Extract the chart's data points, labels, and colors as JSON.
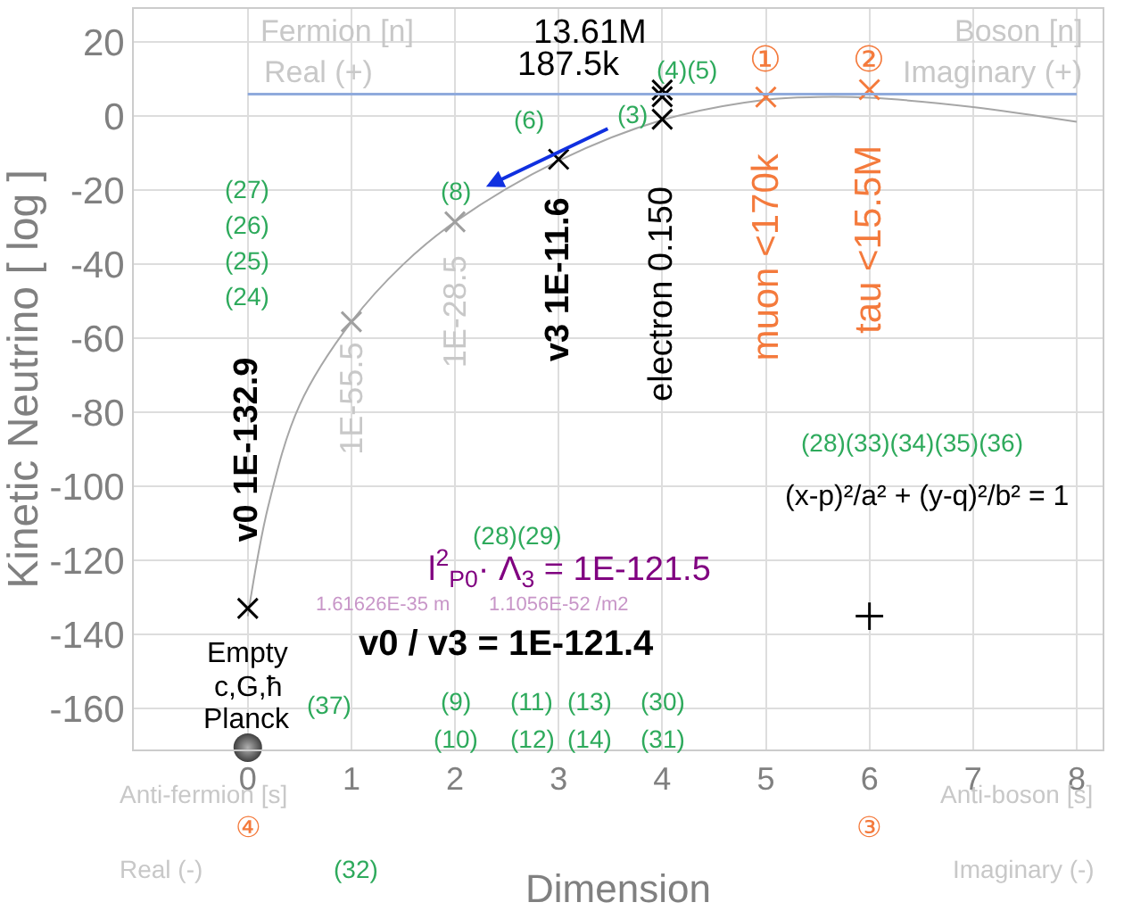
{
  "chart_data": {
    "type": "line",
    "xlabel": "Dimension",
    "ylabel": "Kinetic Neutrino [ log ]",
    "xlim": [
      -1.1,
      8.25
    ],
    "ylim": [
      -171,
      29
    ],
    "xticks": [
      0,
      1,
      2,
      3,
      4,
      5,
      6,
      7,
      8
    ],
    "yticks": [
      -160,
      -140,
      -120,
      -100,
      -80,
      -60,
      -40,
      -20,
      0,
      20
    ],
    "grid": true,
    "legend": false,
    "ref_lines": [
      {
        "axis": "y",
        "value": 6,
        "color": "#8faadc"
      }
    ],
    "series": [
      {
        "color": "#a6a6a6",
        "marker": "none",
        "x": [
          0,
          0.2,
          0.5,
          1,
          1.5,
          2,
          3,
          4,
          5,
          5.5,
          6,
          7,
          8
        ],
        "values": [
          -135,
          -105,
          -78,
          -55.5,
          -40,
          -28.5,
          -12,
          -1,
          4.5,
          5.2,
          5,
          2.5,
          -1.5
        ]
      },
      {
        "type": "scatter",
        "marker": "cross",
        "color": "#000000",
        "colors": [
          "#000000",
          "#a0a0a0",
          "#a0a0a0",
          "#000000",
          "#000000",
          "#000000",
          "#000000"
        ],
        "x": [
          0,
          1,
          2,
          3,
          4,
          4,
          4
        ],
        "values": [
          -132.9,
          -55.5,
          -28.5,
          -11.6,
          -0.8,
          5.3,
          7.1
        ]
      },
      {
        "type": "scatter",
        "marker": "cross",
        "color": "#f47a3c",
        "x": [
          5,
          6
        ],
        "values": [
          5.2,
          7.2
        ]
      },
      {
        "type": "scatter",
        "marker": "plus",
        "color": "#000000",
        "x": [
          6
        ],
        "values": [
          -135
        ]
      },
      {
        "type": "scatter",
        "marker": "circle",
        "color": "#404040",
        "x": [
          0
        ],
        "values": [
          -170.5
        ]
      }
    ],
    "annotations": [
      "Fermion [n]",
      "Real (+)",
      "Boson [n]",
      "Imaginary (+)",
      "13.61M",
      "187.5k",
      "(4)(5)",
      "(3)",
      "(6)",
      "(8)",
      "①",
      "②",
      "muon <170k",
      "tau <15.5M",
      "electron 0.150",
      "v3 1E-11.6",
      "1E-28.5",
      "1E-55.5",
      "v0 1E-132.9",
      "(27)",
      "(26)",
      "(25)",
      "(24)",
      "(28)(29)",
      "l$^{2}$$_{P0}$· Λ$_{3}$ = 1E-121.5",
      "1.61626E-35 m",
      "1.1056E-52 /m2",
      "v0 / v3 = 1E-121.4",
      "Empty",
      "c,G,ħ",
      "Planck",
      "(37)",
      "(9)",
      "(10)",
      "(11)",
      "(12)",
      "(13)",
      "(14)",
      "(30)",
      "(31)",
      "(28)(33)(34)(35)(36)",
      "(x-p)²/a² + (y-q)²/b² = 1",
      "④",
      "③",
      "(32)",
      "Anti-fermion [s]",
      "Real (-)",
      "Anti-boson [s]",
      "Imaginary (-)"
    ]
  }
}
